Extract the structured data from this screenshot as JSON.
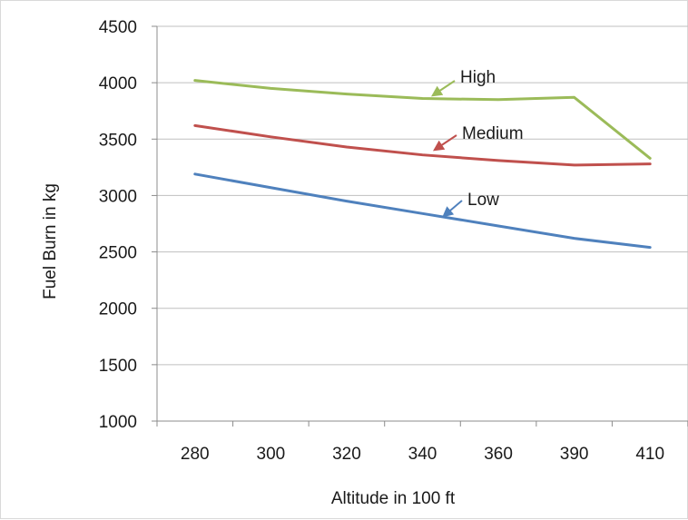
{
  "chart_data": {
    "type": "line",
    "categories": [
      "280",
      "300",
      "320",
      "340",
      "360",
      "390",
      "410"
    ],
    "series": [
      {
        "name": "High",
        "color": "#9bbb59",
        "values": [
          4020,
          3950,
          3900,
          3860,
          3850,
          3870,
          3330
        ]
      },
      {
        "name": "Medium",
        "color": "#c0504d",
        "values": [
          3620,
          3520,
          3430,
          3360,
          3310,
          3270,
          3280
        ]
      },
      {
        "name": "Low",
        "color": "#4f81bd",
        "values": [
          3190,
          3070,
          2950,
          2840,
          2730,
          2620,
          2540
        ]
      }
    ],
    "title": "",
    "xlabel": "Altitude in 100 ft",
    "ylabel": "Fuel Burn in kg",
    "ylim": [
      1000,
      4500
    ],
    "yticks": [
      1000,
      1500,
      2000,
      2500,
      3000,
      3500,
      4000,
      4500
    ],
    "grid": "horizontal",
    "legend": "inline annotations with arrows",
    "annotations": [
      {
        "text": "High",
        "series": "High"
      },
      {
        "text": "Medium",
        "series": "Medium"
      },
      {
        "text": "Low",
        "series": "Low"
      }
    ]
  }
}
